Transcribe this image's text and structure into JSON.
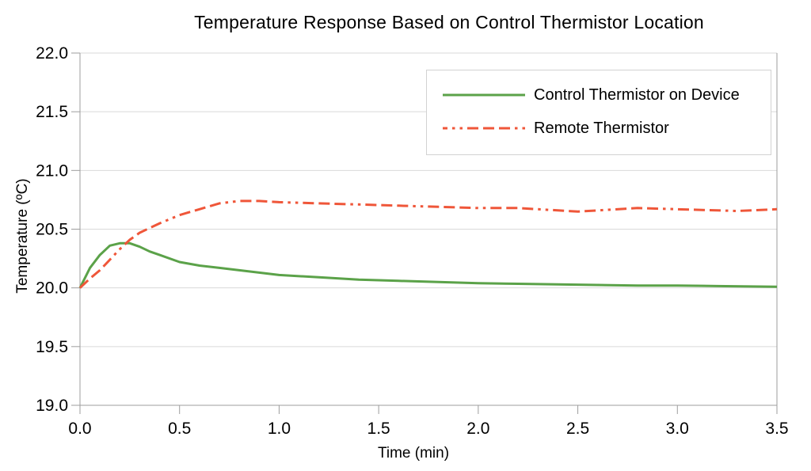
{
  "chart_data": {
    "type": "line",
    "title": "Temperature Response Based on Control Thermistor Location",
    "xlabel": "Time (min)",
    "ylabel": "Temperature (ºC)",
    "xlim": [
      0.0,
      3.5
    ],
    "ylim": [
      19.0,
      22.0
    ],
    "x_tick_values": [
      0.0,
      0.5,
      1.0,
      1.5,
      2.0,
      2.5,
      3.0,
      3.5
    ],
    "x_tick_labels": [
      "0.0",
      "0.5",
      "1.0",
      "1.5",
      "2.0",
      "2.5",
      "3.0",
      "3.5"
    ],
    "y_tick_values": [
      19.0,
      19.5,
      20.0,
      20.5,
      21.0,
      21.5,
      22.0
    ],
    "y_tick_labels": [
      "19.0",
      "19.5",
      "20.0",
      "20.5",
      "21.0",
      "21.5",
      "22.0"
    ],
    "grid": "horizontal",
    "legend_position": "top-right-inside",
    "gridline_color": "#d9d9d9",
    "axis_color": "#9d9d9d",
    "series": [
      {
        "name": "Control Thermistor on Device",
        "color": "#5ba249",
        "line_style": "solid",
        "x": [
          0.0,
          0.05,
          0.1,
          0.15,
          0.2,
          0.25,
          0.3,
          0.35,
          0.4,
          0.5,
          0.6,
          0.7,
          0.8,
          0.9,
          1.0,
          1.2,
          1.4,
          1.6,
          1.8,
          2.0,
          2.2,
          2.4,
          2.6,
          2.8,
          3.0,
          3.2,
          3.5
        ],
        "y": [
          20.0,
          20.17,
          20.28,
          20.36,
          20.38,
          20.38,
          20.35,
          20.31,
          20.28,
          20.22,
          20.19,
          20.17,
          20.15,
          20.13,
          20.11,
          20.09,
          20.07,
          20.06,
          20.05,
          20.04,
          20.035,
          20.03,
          20.025,
          20.02,
          20.02,
          20.015,
          20.01
        ]
      },
      {
        "name": "Remote Thermistor",
        "color": "#ef5639",
        "line_style": "dash-dot-dot",
        "x": [
          0.0,
          0.05,
          0.1,
          0.15,
          0.2,
          0.25,
          0.3,
          0.4,
          0.5,
          0.6,
          0.7,
          0.8,
          0.9,
          1.0,
          1.2,
          1.4,
          1.6,
          1.8,
          2.0,
          2.2,
          2.4,
          2.5,
          2.6,
          2.8,
          3.0,
          3.2,
          3.3,
          3.5
        ],
        "y": [
          20.0,
          20.08,
          20.15,
          20.24,
          20.33,
          20.41,
          20.47,
          20.55,
          20.62,
          20.67,
          20.72,
          20.74,
          20.74,
          20.73,
          20.72,
          20.71,
          20.7,
          20.69,
          20.68,
          20.68,
          20.66,
          20.65,
          20.66,
          20.68,
          20.67,
          20.66,
          20.655,
          20.67
        ]
      }
    ]
  }
}
